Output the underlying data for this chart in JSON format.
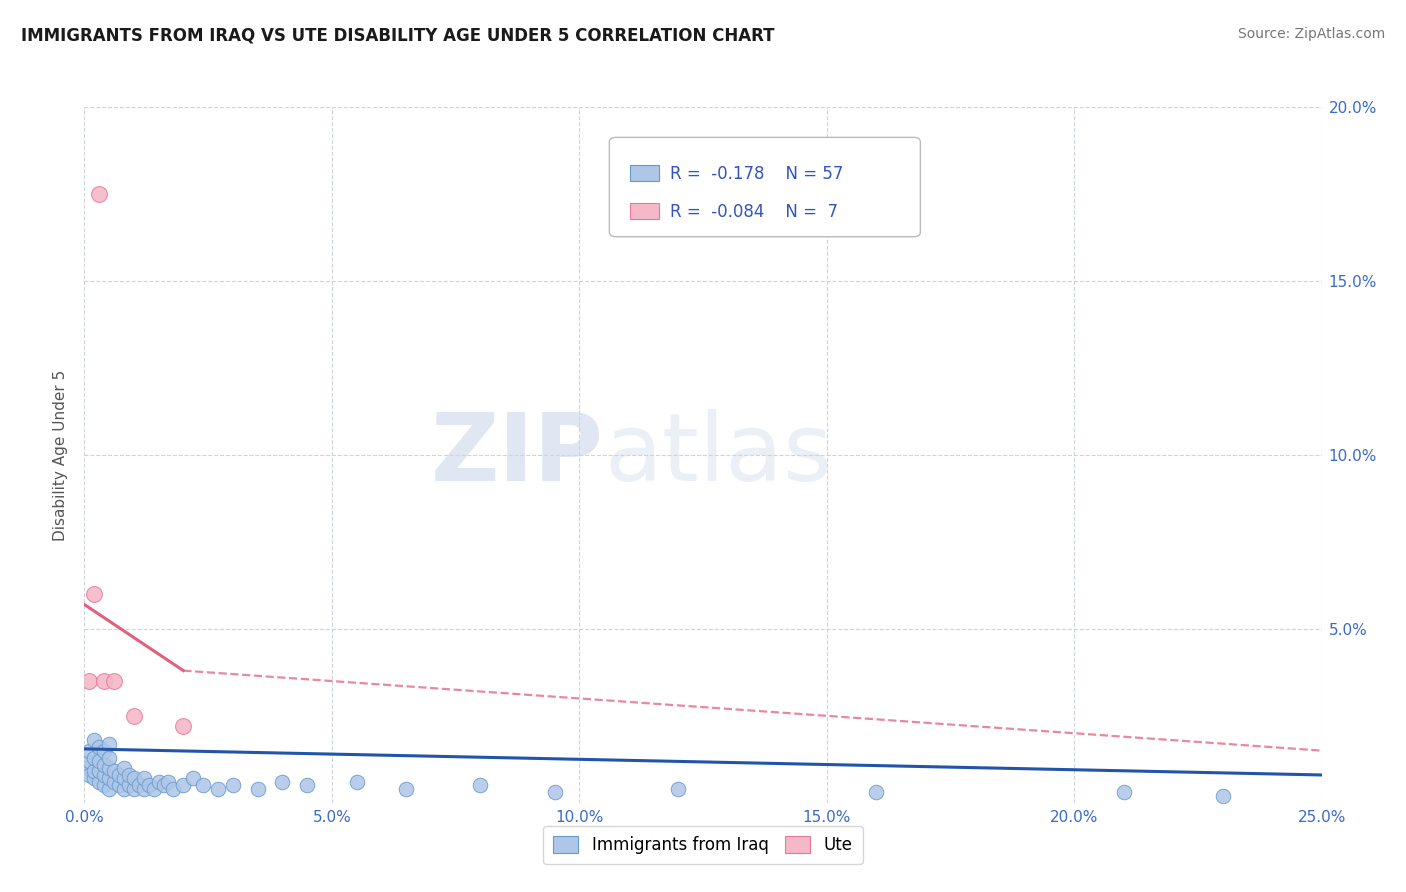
{
  "title": "IMMIGRANTS FROM IRAQ VS UTE DISABILITY AGE UNDER 5 CORRELATION CHART",
  "source_text": "Source: ZipAtlas.com",
  "ylabel": "Disability Age Under 5",
  "xlim": [
    0.0,
    0.25
  ],
  "ylim": [
    0.0,
    0.2
  ],
  "xticks": [
    0.0,
    0.05,
    0.1,
    0.15,
    0.2,
    0.25
  ],
  "yticks": [
    0.0,
    0.05,
    0.1,
    0.15,
    0.2
  ],
  "xticklabels": [
    "0.0%",
    "5.0%",
    "10.0%",
    "15.0%",
    "20.0%",
    "25.0%"
  ],
  "yticklabels_right": [
    "",
    "5.0%",
    "10.0%",
    "15.0%",
    "20.0%"
  ],
  "background_color": "#ffffff",
  "plot_bg_color": "#ffffff",
  "grid_color": "#c8d0d8",
  "series1_color": "#aec6e8",
  "series1_edge_color": "#6699cc",
  "series2_color": "#f4b8c8",
  "series2_edge_color": "#e87898",
  "trend1_color": "#2255aa",
  "trend2_color": "#e06080",
  "r1": -0.178,
  "n1": 57,
  "r2": -0.084,
  "n2": 7,
  "legend_label1": "Immigrants from Iraq",
  "legend_label2": "Ute",
  "watermark_zip": "ZIP",
  "watermark_atlas": "atlas",
  "iraq_x": [
    0.0005,
    0.001,
    0.001,
    0.001,
    0.002,
    0.002,
    0.002,
    0.002,
    0.003,
    0.003,
    0.003,
    0.003,
    0.004,
    0.004,
    0.004,
    0.004,
    0.005,
    0.005,
    0.005,
    0.005,
    0.005,
    0.006,
    0.006,
    0.007,
    0.007,
    0.008,
    0.008,
    0.008,
    0.009,
    0.009,
    0.01,
    0.01,
    0.011,
    0.012,
    0.012,
    0.013,
    0.014,
    0.015,
    0.016,
    0.017,
    0.018,
    0.02,
    0.022,
    0.024,
    0.027,
    0.03,
    0.035,
    0.04,
    0.045,
    0.055,
    0.065,
    0.08,
    0.095,
    0.12,
    0.16,
    0.21,
    0.23
  ],
  "iraq_y": [
    0.01,
    0.008,
    0.012,
    0.015,
    0.007,
    0.009,
    0.013,
    0.018,
    0.006,
    0.009,
    0.012,
    0.016,
    0.005,
    0.008,
    0.011,
    0.015,
    0.004,
    0.007,
    0.01,
    0.013,
    0.017,
    0.006,
    0.009,
    0.005,
    0.008,
    0.004,
    0.007,
    0.01,
    0.005,
    0.008,
    0.004,
    0.007,
    0.005,
    0.004,
    0.007,
    0.005,
    0.004,
    0.006,
    0.005,
    0.006,
    0.004,
    0.005,
    0.007,
    0.005,
    0.004,
    0.005,
    0.004,
    0.006,
    0.005,
    0.006,
    0.004,
    0.005,
    0.003,
    0.004,
    0.003,
    0.003,
    0.002
  ],
  "ute_x": [
    0.001,
    0.002,
    0.003,
    0.004,
    0.006,
    0.01,
    0.02
  ],
  "ute_y": [
    0.035,
    0.06,
    0.175,
    0.035,
    0.035,
    0.025,
    0.022
  ],
  "trend1_x0": 0.0,
  "trend1_y0": 0.0155,
  "trend1_x1": 0.25,
  "trend1_y1": 0.008,
  "trend2_x0": 0.0,
  "trend2_y0": 0.057,
  "trend2_solid_end_x": 0.02,
  "trend2_solid_end_y": 0.038,
  "trend2_x1": 0.25,
  "trend2_y1": 0.015
}
